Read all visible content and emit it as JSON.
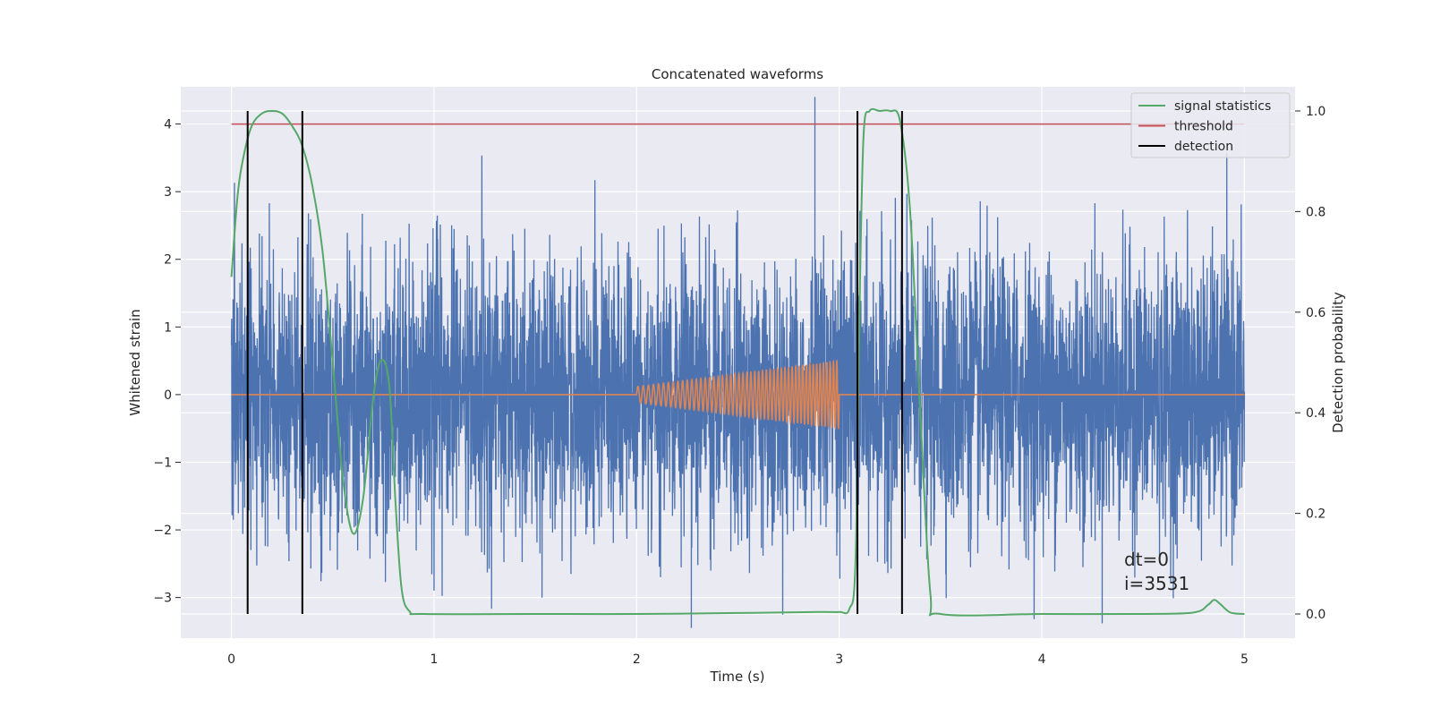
{
  "chart_data": {
    "type": "line",
    "title": "Concatenated waveforms",
    "xlabel": "Time (s)",
    "ylabel_left": "Whitened strain",
    "ylabel_right": "Detection probability",
    "xlim": [
      -0.25,
      5.25
    ],
    "ylim_left": [
      -3.6,
      4.55
    ],
    "ylim_right": [
      -0.048,
      1.048
    ],
    "x_ticks": [
      0,
      1,
      2,
      3,
      4,
      5
    ],
    "x_tick_labels": [
      "0",
      "1",
      "2",
      "3",
      "4",
      "5"
    ],
    "y_left_ticks": [
      -3,
      -2,
      -1,
      0,
      1,
      2,
      3,
      4
    ],
    "y_left_tick_labels": [
      "−3",
      "−2",
      "−1",
      "0",
      "1",
      "2",
      "3",
      "4"
    ],
    "y_right_ticks": [
      0.0,
      0.2,
      0.4,
      0.6,
      0.8,
      1.0
    ],
    "y_right_tick_labels": [
      "0.0",
      "0.2",
      "0.4",
      "0.6",
      "0.8",
      "1.0"
    ],
    "grid": true,
    "legend_position": "top-right",
    "legend": [
      {
        "label": "signal statistics",
        "color": "#55a868"
      },
      {
        "label": "threshold",
        "color": "#c44e52"
      },
      {
        "label": "detection",
        "color": "#000000"
      }
    ],
    "series": [
      {
        "name": "signal statistics",
        "axis": "right",
        "color": "#55a868",
        "x": [
          0.0,
          0.03,
          0.06,
          0.1,
          0.15,
          0.2,
          0.25,
          0.3,
          0.35,
          0.4,
          0.45,
          0.5,
          0.55,
          0.6,
          0.65,
          0.7,
          0.74,
          0.78,
          0.81,
          0.84,
          0.88,
          0.95,
          1.5,
          2.0,
          2.5,
          2.9,
          3.0,
          3.05,
          3.08,
          3.1,
          3.12,
          3.15,
          3.2,
          3.25,
          3.3,
          3.35,
          3.4,
          3.45,
          3.5,
          4.0,
          4.5,
          4.75,
          4.82,
          4.85,
          4.88,
          4.93,
          5.0
        ],
        "y": [
          0.67,
          0.83,
          0.91,
          0.97,
          0.995,
          1.0,
          0.995,
          0.97,
          0.93,
          0.85,
          0.72,
          0.5,
          0.27,
          0.16,
          0.23,
          0.43,
          0.505,
          0.45,
          0.22,
          0.05,
          0.005,
          0.0,
          0.0,
          0.0,
          0.002,
          0.004,
          0.004,
          0.01,
          0.1,
          0.6,
          0.95,
          1.0,
          1.0,
          1.0,
          0.98,
          0.8,
          0.4,
          0.04,
          0.0,
          0.0,
          0.0,
          0.003,
          0.018,
          0.028,
          0.02,
          0.003,
          0.0
        ]
      },
      {
        "name": "threshold",
        "axis": "left",
        "color": "#c44e52",
        "x": [
          0.0,
          5.0
        ],
        "y": [
          4.0,
          4.0
        ]
      },
      {
        "name": "whitened strain",
        "axis": "left",
        "color": "#4c72b0",
        "description_range": [
          0.0,
          5.0
        ],
        "envelope_sigma": 1.0,
        "peak_min": -3.45,
        "peak_max": 4.4
      },
      {
        "name": "injected waveform",
        "axis": "left",
        "color": "#dd8452",
        "chirp_start": 2.0,
        "chirp_end": 3.0,
        "amplitude_start": 0.12,
        "amplitude_end": 0.5
      }
    ],
    "detections": [
      0.08,
      0.35,
      3.09,
      3.31
    ],
    "detection_ylim_right": [
      0.0,
      1.0
    ]
  },
  "annotation": {
    "line1": "dt=0",
    "line2": "i=3531"
  }
}
